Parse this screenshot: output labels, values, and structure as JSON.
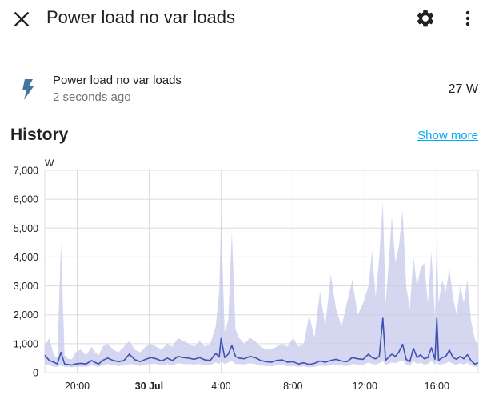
{
  "header": {
    "title": "Power load no var loads",
    "close_icon": "close-icon",
    "settings_icon": "gear-icon",
    "menu_icon": "more-vertical-icon"
  },
  "entity": {
    "icon": "flash-icon",
    "name": "Power load no var loads",
    "last_changed": "2 seconds ago",
    "state": "27 W",
    "icon_color": "#44739e"
  },
  "history": {
    "title": "History",
    "show_more": "Show more",
    "link_color": "#03a9f4"
  },
  "chart_data": {
    "type": "line",
    "ylabel": "W",
    "ylim": [
      0,
      7000
    ],
    "yticks": [
      0,
      1000,
      2000,
      3000,
      4000,
      5000,
      6000,
      7000
    ],
    "ytick_labels": [
      "0",
      "1,000",
      "2,000",
      "3,000",
      "4,000",
      "5,000",
      "6,000",
      "7,000"
    ],
    "xlim": [
      18.2,
      42.3
    ],
    "xticks": [
      20,
      24,
      28,
      32,
      36,
      40
    ],
    "xtick_labels": [
      "20:00",
      "30 Jul",
      "4:00",
      "8:00",
      "12:00",
      "16:00"
    ],
    "bold_xtick": "30 Jul",
    "grid": true,
    "series": [
      {
        "line_color": "#3f51b5",
        "band_color": "#c5cae9",
        "x": [
          18.2,
          18.45,
          18.7,
          18.9,
          19.1,
          19.3,
          19.5,
          19.7,
          19.9,
          20.2,
          20.5,
          20.8,
          21.0,
          21.2,
          21.4,
          21.7,
          22.0,
          22.3,
          22.6,
          22.9,
          23.2,
          23.5,
          23.8,
          24.1,
          24.4,
          24.7,
          25.0,
          25.3,
          25.6,
          25.9,
          26.2,
          26.5,
          26.8,
          27.1,
          27.4,
          27.7,
          27.9,
          28.0,
          28.2,
          28.4,
          28.6,
          28.8,
          29.0,
          29.3,
          29.6,
          29.9,
          30.2,
          30.5,
          30.8,
          31.1,
          31.4,
          31.7,
          32.0,
          32.3,
          32.6,
          32.9,
          33.2,
          33.5,
          33.8,
          34.1,
          34.4,
          34.7,
          35.0,
          35.3,
          35.6,
          35.9,
          36.2,
          36.4,
          36.6,
          36.8,
          37.0,
          37.15,
          37.3,
          37.5,
          37.7,
          37.9,
          38.1,
          38.3,
          38.5,
          38.7,
          38.9,
          39.1,
          39.3,
          39.5,
          39.7,
          39.9,
          40.0,
          40.1,
          40.3,
          40.5,
          40.7,
          40.9,
          41.1,
          41.3,
          41.5,
          41.7,
          41.9,
          42.1,
          42.3
        ],
        "y": [
          600,
          420,
          360,
          300,
          700,
          300,
          280,
          260,
          300,
          320,
          300,
          420,
          350,
          300,
          420,
          500,
          420,
          380,
          420,
          640,
          450,
          380,
          460,
          520,
          480,
          400,
          500,
          420,
          560,
          520,
          500,
          460,
          520,
          440,
          420,
          660,
          540,
          1180,
          520,
          640,
          940,
          560,
          500,
          480,
          560,
          520,
          420,
          380,
          360,
          420,
          440,
          360,
          380,
          300,
          340,
          280,
          320,
          400,
          360,
          420,
          460,
          400,
          380,
          520,
          480,
          460,
          640,
          520,
          480,
          560,
          1880,
          420,
          520,
          640,
          560,
          720,
          980,
          460,
          380,
          840,
          520,
          620,
          480,
          520,
          860,
          460,
          1880,
          420,
          520,
          560,
          780,
          520,
          460,
          560,
          480,
          620,
          420,
          300,
          340
        ],
        "band_high": [
          900,
          1200,
          600,
          500,
          4500,
          600,
          480,
          460,
          700,
          800,
          600,
          900,
          700,
          600,
          900,
          1000,
          800,
          700,
          900,
          1100,
          800,
          700,
          900,
          1000,
          900,
          800,
          1000,
          900,
          1200,
          1100,
          1000,
          900,
          1100,
          900,
          1000,
          1600,
          2800,
          5300,
          1400,
          1800,
          4900,
          1500,
          1200,
          1000,
          1200,
          1100,
          900,
          800,
          800,
          900,
          1000,
          900,
          1200,
          900,
          1000,
          2000,
          1200,
          2800,
          1600,
          3400,
          2200,
          1600,
          2400,
          3200,
          2000,
          2400,
          3000,
          4200,
          2600,
          4000,
          5900,
          2400,
          3600,
          5400,
          3800,
          4400,
          5600,
          3000,
          2200,
          4000,
          3000,
          3600,
          3800,
          2400,
          4200,
          1900,
          4800,
          2400,
          3200,
          2800,
          3600,
          2600,
          2000,
          3000,
          2400,
          3200,
          1800,
          1200,
          900
        ],
        "band_low": [
          300,
          250,
          200,
          200,
          250,
          200,
          200,
          180,
          200,
          200,
          200,
          250,
          220,
          200,
          250,
          300,
          250,
          230,
          250,
          300,
          280,
          230,
          280,
          300,
          300,
          250,
          300,
          260,
          320,
          300,
          300,
          280,
          300,
          270,
          260,
          350,
          300,
          400,
          300,
          350,
          400,
          300,
          300,
          280,
          320,
          300,
          250,
          230,
          220,
          250,
          260,
          220,
          230,
          200,
          210,
          180,
          200,
          240,
          220,
          250,
          270,
          240,
          230,
          300,
          280,
          270,
          350,
          300,
          280,
          320,
          400,
          260,
          300,
          350,
          320,
          380,
          420,
          280,
          230,
          400,
          300,
          340,
          280,
          300,
          400,
          270,
          400,
          260,
          300,
          320,
          380,
          300,
          270,
          320,
          280,
          340,
          250,
          200,
          210
        ]
      }
    ]
  }
}
